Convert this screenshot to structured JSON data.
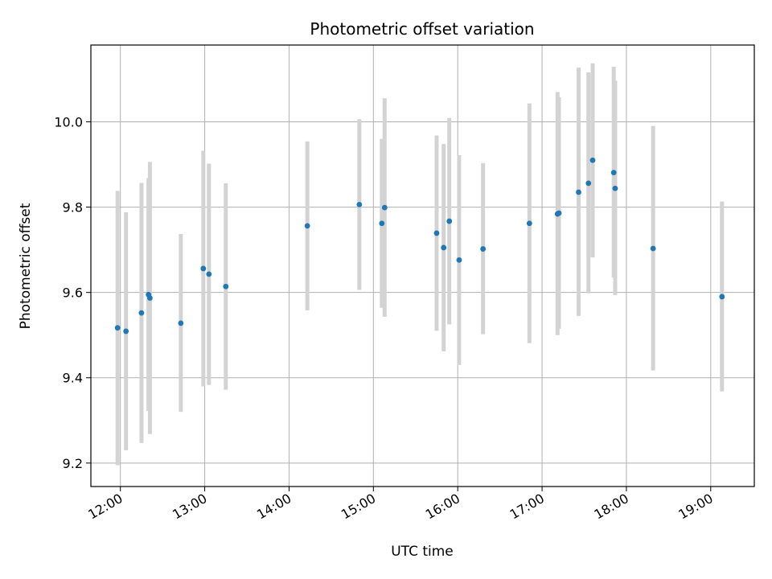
{
  "chart_data": {
    "type": "scatter",
    "title": "Photometric offset variation",
    "xlabel": "UTC time",
    "ylabel": "Photometric offset",
    "x_tick_labels": [
      "12:00",
      "13:00",
      "14:00",
      "15:00",
      "16:00",
      "17:00",
      "18:00",
      "19:00"
    ],
    "y_tick_labels": [
      "9.2",
      "9.4",
      "9.6",
      "9.8",
      "10.0"
    ],
    "y_ticks": [
      9.2,
      9.4,
      9.6,
      9.8,
      10.0
    ],
    "xlim": [
      "11:39",
      "19:31"
    ],
    "ylim": [
      9.145,
      10.18
    ],
    "grid": true,
    "colors": {
      "point": "#1f77b4",
      "errorbar": "#d3d3d3",
      "grid": "#b0b0b0"
    },
    "series": [
      {
        "points": [
          {
            "t": "11:58",
            "y": 9.517,
            "ylo": 9.195,
            "yhi": 9.838
          },
          {
            "t": "12:04",
            "y": 9.509,
            "ylo": 9.23,
            "yhi": 9.788
          },
          {
            "t": "12:15",
            "y": 9.552,
            "ylo": 9.247,
            "yhi": 9.857
          },
          {
            "t": "12:20",
            "y": 9.595,
            "ylo": 9.322,
            "yhi": 9.868
          },
          {
            "t": "12:21",
            "y": 9.587,
            "ylo": 9.268,
            "yhi": 9.906
          },
          {
            "t": "12:43",
            "y": 9.528,
            "ylo": 9.32,
            "yhi": 9.737
          },
          {
            "t": "12:59",
            "y": 9.656,
            "ylo": 9.38,
            "yhi": 9.932
          },
          {
            "t": "13:03",
            "y": 9.643,
            "ylo": 9.383,
            "yhi": 9.902
          },
          {
            "t": "13:15",
            "y": 9.614,
            "ylo": 9.372,
            "yhi": 9.856
          },
          {
            "t": "14:13",
            "y": 9.756,
            "ylo": 9.558,
            "yhi": 9.954
          },
          {
            "t": "14:50",
            "y": 9.806,
            "ylo": 9.606,
            "yhi": 10.006
          },
          {
            "t": "15:06",
            "y": 9.762,
            "ylo": 9.564,
            "yhi": 9.96
          },
          {
            "t": "15:08",
            "y": 9.799,
            "ylo": 9.543,
            "yhi": 10.055
          },
          {
            "t": "15:45",
            "y": 9.739,
            "ylo": 9.51,
            "yhi": 9.968
          },
          {
            "t": "15:50",
            "y": 9.705,
            "ylo": 9.462,
            "yhi": 9.948
          },
          {
            "t": "15:54",
            "y": 9.767,
            "ylo": 9.525,
            "yhi": 10.009
          },
          {
            "t": "16:01",
            "y": 9.676,
            "ylo": 9.43,
            "yhi": 9.922
          },
          {
            "t": "16:18",
            "y": 9.702,
            "ylo": 9.502,
            "yhi": 9.903
          },
          {
            "t": "16:51",
            "y": 9.762,
            "ylo": 9.481,
            "yhi": 10.043
          },
          {
            "t": "17:11",
            "y": 9.784,
            "ylo": 9.5,
            "yhi": 10.07
          },
          {
            "t": "17:12",
            "y": 9.786,
            "ylo": 9.515,
            "yhi": 10.058
          },
          {
            "t": "17:26",
            "y": 9.835,
            "ylo": 9.545,
            "yhi": 10.127
          },
          {
            "t": "17:33",
            "y": 9.856,
            "ylo": 9.598,
            "yhi": 10.116
          },
          {
            "t": "17:36",
            "y": 9.91,
            "ylo": 9.682,
            "yhi": 10.137
          },
          {
            "t": "17:51",
            "y": 9.881,
            "ylo": 9.635,
            "yhi": 10.129
          },
          {
            "t": "17:52",
            "y": 9.844,
            "ylo": 9.594,
            "yhi": 10.096
          },
          {
            "t": "18:19",
            "y": 9.703,
            "ylo": 9.417,
            "yhi": 9.99
          },
          {
            "t": "19:08",
            "y": 9.59,
            "ylo": 9.368,
            "yhi": 9.813
          }
        ]
      }
    ]
  }
}
